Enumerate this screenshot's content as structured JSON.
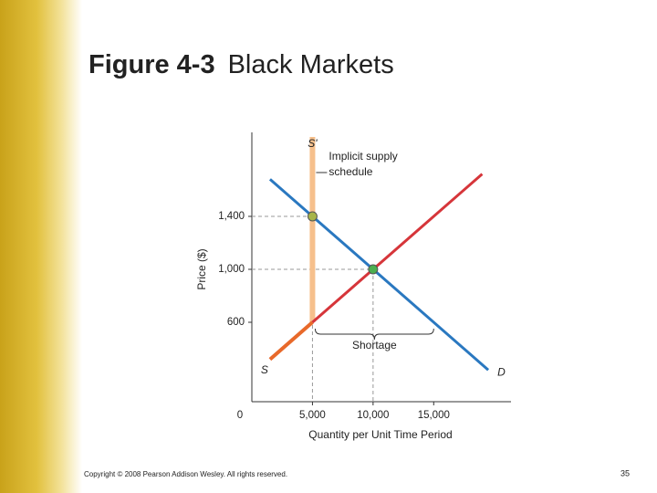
{
  "chart_data": {
    "type": "line",
    "title": "Figure 4-3",
    "subtitle": "Black Markets",
    "x_label": "Quantity per Unit Time Period",
    "y_label": "Price ($)",
    "xlim": [
      0,
      21000
    ],
    "ylim": [
      0,
      2000
    ],
    "xticks": [
      0,
      {
        "value": 5000,
        "label": "5,000"
      },
      {
        "value": 10000,
        "label": "10,000"
      },
      {
        "value": 15000,
        "label": "15,000"
      }
    ],
    "yticks": [
      600,
      {
        "value": 1000,
        "label": "1,000"
      },
      {
        "value": 1400,
        "label": "1,400"
      }
    ],
    "series": [
      {
        "name": "D",
        "color": "#2a78c0",
        "x": [
          1500,
          19500
        ],
        "values": [
          1680,
          240
        ]
      },
      {
        "name": "S",
        "segment_colors": [
          "#e8692a",
          "#d6353a"
        ],
        "x": [
          1500,
          5000,
          19000
        ],
        "values": [
          320,
          600,
          1720
        ]
      },
      {
        "name": "S'",
        "color": "#f6c08c",
        "x": [
          5000,
          5000
        ],
        "values": [
          600,
          2000
        ]
      }
    ],
    "points": [
      {
        "x": 5000,
        "y": 1400,
        "color": "#a7b54a"
      },
      {
        "x": 10000,
        "y": 1000,
        "color": "#4caf50"
      }
    ],
    "annotation": [
      "Implicit supply",
      "schedule"
    ],
    "shortage": {
      "label": "Shortage",
      "from": 5000,
      "to": 15000
    }
  },
  "copyright": "Copyright © 2008 Pearson Addison Wesley. All rights reserved.",
  "page_number": 35
}
